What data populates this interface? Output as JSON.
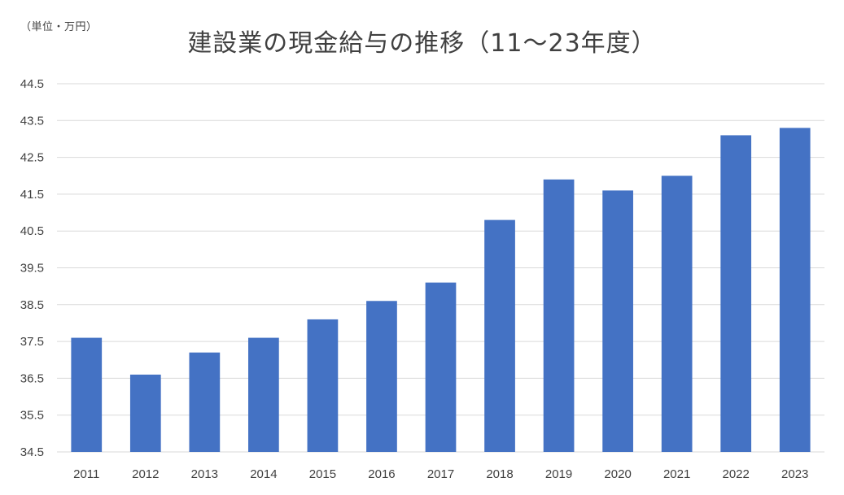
{
  "unit_label": "（単位・万円）",
  "title": "建設業の現金給与の推移（11～23年度）",
  "colors": {
    "bar": "#4472C4",
    "grid": "#D9D9D9",
    "text": "#404040"
  },
  "chart_data": {
    "type": "bar",
    "title": "建設業の現金給与の推移（11～23年度）",
    "unit": "（単位・万円）",
    "xlabel": "",
    "ylabel": "",
    "grid": true,
    "legend": "none",
    "ylim": [
      34.5,
      44.5
    ],
    "yticks": [
      "34.5",
      "35.5",
      "36.5",
      "37.5",
      "38.5",
      "39.5",
      "40.5",
      "41.5",
      "42.5",
      "43.5",
      "44.5"
    ],
    "categories": [
      "2011",
      "2012",
      "2013",
      "2014",
      "2015",
      "2016",
      "2017",
      "2018",
      "2019",
      "2020",
      "2021",
      "2022",
      "2023"
    ],
    "values": [
      37.6,
      36.6,
      37.2,
      37.6,
      38.1,
      38.6,
      39.1,
      40.8,
      41.9,
      41.6,
      42.0,
      43.1,
      43.3
    ]
  }
}
